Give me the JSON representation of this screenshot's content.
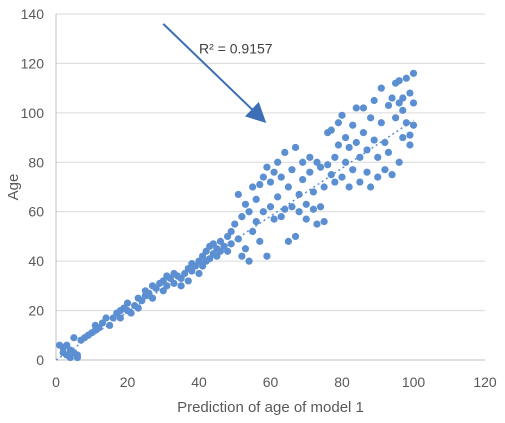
{
  "chart_data": {
    "type": "scatter",
    "xlabel": "Prediction of age of model 1",
    "ylabel": "Age",
    "xlim": [
      0,
      120
    ],
    "ylim": [
      0,
      140
    ],
    "xticks": [
      0,
      20,
      40,
      60,
      80,
      100,
      120
    ],
    "yticks": [
      0,
      20,
      40,
      60,
      80,
      100,
      120,
      140
    ],
    "xtick_labels": [
      "0",
      "20",
      "40",
      "60",
      "80",
      "100",
      "120"
    ],
    "ytick_labels": [
      "0",
      "20",
      "40",
      "60",
      "80",
      "100",
      "120",
      "140"
    ],
    "grid": "horizontal",
    "legend": "none",
    "colors": {
      "points": "#5b8fd1",
      "trendline": "#5b8fd1",
      "arrow": "#3d6fb6",
      "grid": "#d9d9d9",
      "axis": "#bfbfbf"
    },
    "trendline": {
      "style": "dotted",
      "x": [
        0,
        100
      ],
      "y": [
        0,
        97
      ]
    },
    "annotation": {
      "text": "R² = 0.9157",
      "arrow_from": [
        30,
        136
      ],
      "arrow_to": [
        58,
        97
      ]
    },
    "series": [
      {
        "points": [
          [
            1,
            6
          ],
          [
            2,
            3
          ],
          [
            2,
            5
          ],
          [
            3,
            2
          ],
          [
            3,
            6
          ],
          [
            4,
            1
          ],
          [
            4,
            4
          ],
          [
            5,
            3
          ],
          [
            6,
            1
          ],
          [
            6,
            2
          ],
          [
            5,
            9
          ],
          [
            7,
            8
          ],
          [
            8,
            9
          ],
          [
            9,
            10
          ],
          [
            10,
            11
          ],
          [
            11,
            12
          ],
          [
            11,
            14
          ],
          [
            12,
            13
          ],
          [
            13,
            15
          ],
          [
            14,
            17
          ],
          [
            15,
            14
          ],
          [
            16,
            17
          ],
          [
            17,
            19
          ],
          [
            18,
            17
          ],
          [
            18,
            20
          ],
          [
            19,
            21
          ],
          [
            20,
            23
          ],
          [
            20,
            20
          ],
          [
            21,
            19
          ],
          [
            22,
            22
          ],
          [
            23,
            21
          ],
          [
            23,
            25
          ],
          [
            24,
            24
          ],
          [
            25,
            26
          ],
          [
            25,
            28
          ],
          [
            26,
            27
          ],
          [
            27,
            25
          ],
          [
            27,
            30
          ],
          [
            28,
            29
          ],
          [
            29,
            31
          ],
          [
            30,
            28
          ],
          [
            30,
            32
          ],
          [
            31,
            30
          ],
          [
            31,
            34
          ],
          [
            32,
            33
          ],
          [
            33,
            31
          ],
          [
            33,
            35
          ],
          [
            34,
            34
          ],
          [
            35,
            30
          ],
          [
            35,
            33
          ],
          [
            36,
            35
          ],
          [
            37,
            32
          ],
          [
            37,
            37
          ],
          [
            38,
            36
          ],
          [
            38,
            39
          ],
          [
            39,
            38
          ],
          [
            40,
            35
          ],
          [
            40,
            40
          ],
          [
            41,
            38
          ],
          [
            41,
            42
          ],
          [
            42,
            40
          ],
          [
            42,
            44
          ],
          [
            43,
            41
          ],
          [
            43,
            46
          ],
          [
            44,
            43
          ],
          [
            44,
            47
          ],
          [
            45,
            42
          ],
          [
            45,
            45
          ],
          [
            46,
            44
          ],
          [
            46,
            48
          ],
          [
            47,
            46
          ],
          [
            48,
            44
          ],
          [
            48,
            50
          ],
          [
            49,
            47
          ],
          [
            49,
            52
          ],
          [
            50,
            55
          ],
          [
            51,
            49
          ],
          [
            51,
            67
          ],
          [
            52,
            58
          ],
          [
            52,
            42
          ],
          [
            53,
            63
          ],
          [
            53,
            45
          ],
          [
            54,
            60
          ],
          [
            54,
            40
          ],
          [
            55,
            70
          ],
          [
            55,
            52
          ],
          [
            56,
            65
          ],
          [
            56,
            56
          ],
          [
            57,
            71
          ],
          [
            57,
            48
          ],
          [
            58,
            74
          ],
          [
            58,
            60
          ],
          [
            59,
            78
          ],
          [
            59,
            42
          ],
          [
            60,
            62
          ],
          [
            60,
            72
          ],
          [
            61,
            76
          ],
          [
            61,
            57
          ],
          [
            62,
            66
          ],
          [
            62,
            80
          ],
          [
            63,
            58
          ],
          [
            63,
            74
          ],
          [
            64,
            61
          ],
          [
            64,
            84
          ],
          [
            65,
            48
          ],
          [
            65,
            70
          ],
          [
            66,
            62
          ],
          [
            66,
            77
          ],
          [
            67,
            50
          ],
          [
            67,
            86
          ],
          [
            68,
            60
          ],
          [
            68,
            67
          ],
          [
            69,
            73
          ],
          [
            69,
            80
          ],
          [
            70,
            57
          ],
          [
            70,
            63
          ],
          [
            71,
            76
          ],
          [
            71,
            82
          ],
          [
            72,
            61
          ],
          [
            72,
            68
          ],
          [
            73,
            80
          ],
          [
            73,
            55
          ],
          [
            74,
            62
          ],
          [
            74,
            78
          ],
          [
            75,
            70
          ],
          [
            75,
            56
          ],
          [
            76,
            92
          ],
          [
            76,
            79
          ],
          [
            77,
            75
          ],
          [
            77,
            93
          ],
          [
            78,
            82
          ],
          [
            78,
            72
          ],
          [
            79,
            96
          ],
          [
            79,
            87
          ],
          [
            80,
            74
          ],
          [
            80,
            99
          ],
          [
            81,
            80
          ],
          [
            81,
            90
          ],
          [
            82,
            70
          ],
          [
            82,
            86
          ],
          [
            83,
            95
          ],
          [
            83,
            77
          ],
          [
            84,
            102
          ],
          [
            84,
            88
          ],
          [
            85,
            72
          ],
          [
            85,
            82
          ],
          [
            86,
            92
          ],
          [
            86,
            102
          ],
          [
            87,
            76
          ],
          [
            87,
            85
          ],
          [
            88,
            98
          ],
          [
            88,
            70
          ],
          [
            89,
            89
          ],
          [
            89,
            105
          ],
          [
            90,
            74
          ],
          [
            90,
            82
          ],
          [
            91,
            96
          ],
          [
            91,
            110
          ],
          [
            92,
            77
          ],
          [
            92,
            88
          ],
          [
            93,
            103
          ],
          [
            93,
            84
          ],
          [
            94,
            106
          ],
          [
            94,
            75
          ],
          [
            95,
            98
          ],
          [
            95,
            112
          ],
          [
            96,
            80
          ],
          [
            96,
            104
          ],
          [
            97,
            106
          ],
          [
            97,
            90
          ],
          [
            98,
            96
          ],
          [
            98,
            114
          ],
          [
            99,
            108
          ],
          [
            99,
            87
          ],
          [
            100,
            116
          ],
          [
            100,
            95
          ],
          [
            100,
            104
          ],
          [
            99,
            91
          ],
          [
            97,
            101
          ],
          [
            96,
            113
          ]
        ]
      }
    ]
  }
}
